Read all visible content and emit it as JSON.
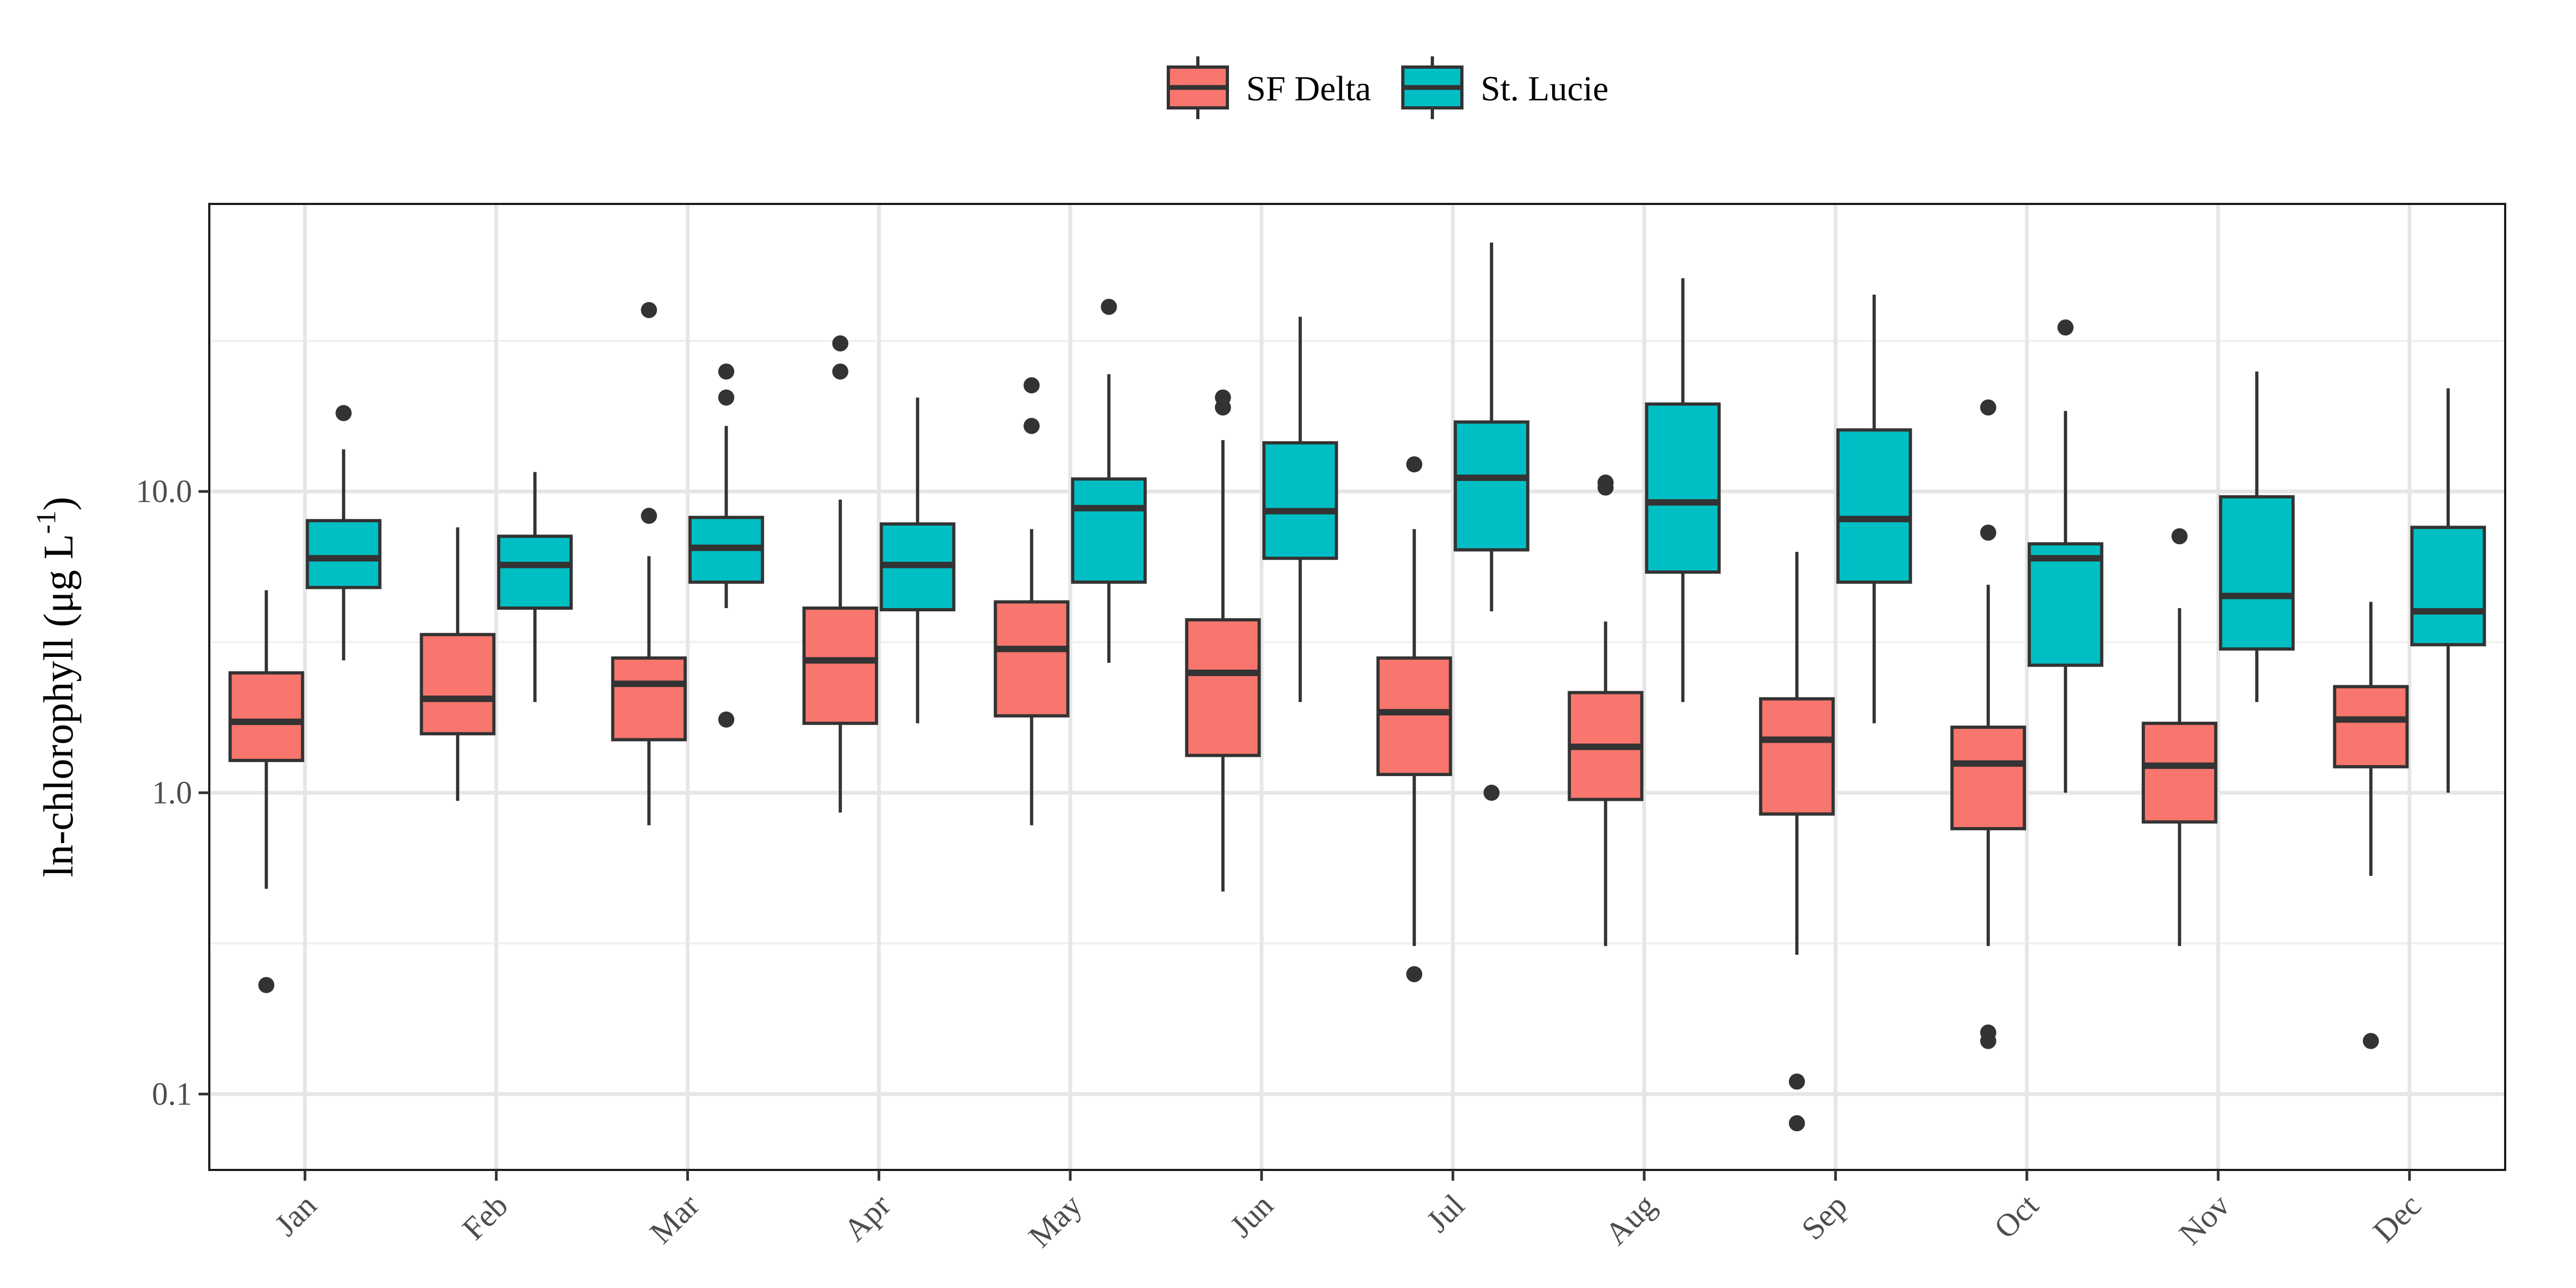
{
  "chart_data": {
    "type": "box",
    "ylabel": "ln-chlorophyll (μg L",
    "ylabel_superscript": "-1",
    "ylabel_close": ")",
    "y_scale": "log10",
    "ylim": [
      0.056,
      90
    ],
    "y_ticks": [
      0.1,
      1.0,
      10.0
    ],
    "y_tick_labels": [
      "0.1",
      "1.0",
      "10.0"
    ],
    "y_minor_gridlines": [
      0.3162,
      3.162,
      31.62
    ],
    "grid": true,
    "legend_position": "top",
    "categories": [
      "Jan",
      "Feb",
      "Mar",
      "Apr",
      "May",
      "Jun",
      "Jul",
      "Aug",
      "Sep",
      "Oct",
      "Nov",
      "Dec"
    ],
    "series": [
      {
        "name": "SF Delta",
        "color": "#F8766D",
        "boxes": [
          {
            "low": 0.48,
            "q1": 1.28,
            "median": 1.72,
            "q3": 2.5,
            "high": 4.7,
            "outliers": [
              0.23
            ]
          },
          {
            "low": 0.94,
            "q1": 1.57,
            "median": 2.05,
            "q3": 3.35,
            "high": 7.6,
            "outliers": []
          },
          {
            "low": 0.78,
            "q1": 1.5,
            "median": 2.3,
            "q3": 2.8,
            "high": 6.1,
            "outliers": [
              8.3,
              40
            ]
          },
          {
            "low": 0.86,
            "q1": 1.7,
            "median": 2.75,
            "q3": 4.1,
            "high": 9.4,
            "outliers": [
              25,
              31
            ]
          },
          {
            "low": 0.78,
            "q1": 1.8,
            "median": 3.0,
            "q3": 4.3,
            "high": 7.5,
            "outliers": [
              16.5,
              22.5
            ]
          },
          {
            "low": 0.47,
            "q1": 1.33,
            "median": 2.5,
            "q3": 3.75,
            "high": 14.8,
            "outliers": [
              19,
              20.5
            ]
          },
          {
            "low": 0.31,
            "q1": 1.15,
            "median": 1.85,
            "q3": 2.8,
            "high": 7.5,
            "outliers": [
              0.25,
              12.3
            ]
          },
          {
            "low": 0.31,
            "q1": 0.95,
            "median": 1.42,
            "q3": 2.15,
            "high": 3.7,
            "outliers": [
              10.3,
              10.7
            ]
          },
          {
            "low": 0.29,
            "q1": 0.85,
            "median": 1.5,
            "q3": 2.05,
            "high": 6.3,
            "outliers": [
              0.08,
              0.11
            ]
          },
          {
            "low": 0.31,
            "q1": 0.76,
            "median": 1.25,
            "q3": 1.65,
            "high": 4.9,
            "outliers": [
              0.15,
              0.16,
              7.3,
              19
            ]
          },
          {
            "low": 0.31,
            "q1": 0.8,
            "median": 1.23,
            "q3": 1.7,
            "high": 4.1,
            "outliers": [
              7.1
            ]
          },
          {
            "low": 0.53,
            "q1": 1.22,
            "median": 1.75,
            "q3": 2.25,
            "high": 4.3,
            "outliers": [
              0.15
            ]
          }
        ]
      },
      {
        "name": "St. Lucie",
        "color": "#00BFC4",
        "boxes": [
          {
            "low": 2.75,
            "q1": 4.8,
            "median": 6.0,
            "q3": 8.0,
            "high": 13.8,
            "outliers": [
              18.2
            ]
          },
          {
            "low": 2.0,
            "q1": 4.1,
            "median": 5.7,
            "q3": 7.1,
            "high": 11.6,
            "outliers": []
          },
          {
            "low": 4.1,
            "q1": 5.0,
            "median": 6.5,
            "q3": 8.2,
            "high": 16.5,
            "outliers": [
              1.75,
              20.5,
              25
            ]
          },
          {
            "low": 1.7,
            "q1": 4.05,
            "median": 5.7,
            "q3": 7.8,
            "high": 20.5,
            "outliers": []
          },
          {
            "low": 2.7,
            "q1": 5.0,
            "median": 8.8,
            "q3": 11.0,
            "high": 24.5,
            "outliers": [
              41
            ]
          },
          {
            "low": 2.0,
            "q1": 6.0,
            "median": 8.6,
            "q3": 14.5,
            "high": 38,
            "outliers": []
          },
          {
            "low": 4.0,
            "q1": 6.4,
            "median": 11.1,
            "q3": 17.0,
            "high": 67,
            "outliers": [
              1.0
            ]
          },
          {
            "low": 2.0,
            "q1": 5.4,
            "median": 9.2,
            "q3": 19.5,
            "high": 51,
            "outliers": []
          },
          {
            "low": 1.7,
            "q1": 5.0,
            "median": 8.1,
            "q3": 16.0,
            "high": 45,
            "outliers": []
          },
          {
            "low": 1.0,
            "q1": 2.65,
            "median": 6.0,
            "q3": 6.7,
            "high": 18.5,
            "outliers": [
              35
            ]
          },
          {
            "low": 2.0,
            "q1": 3.0,
            "median": 4.5,
            "q3": 9.6,
            "high": 25,
            "outliers": []
          },
          {
            "low": 1.0,
            "q1": 3.1,
            "median": 4.0,
            "q3": 7.6,
            "high": 22,
            "outliers": []
          }
        ]
      }
    ]
  }
}
